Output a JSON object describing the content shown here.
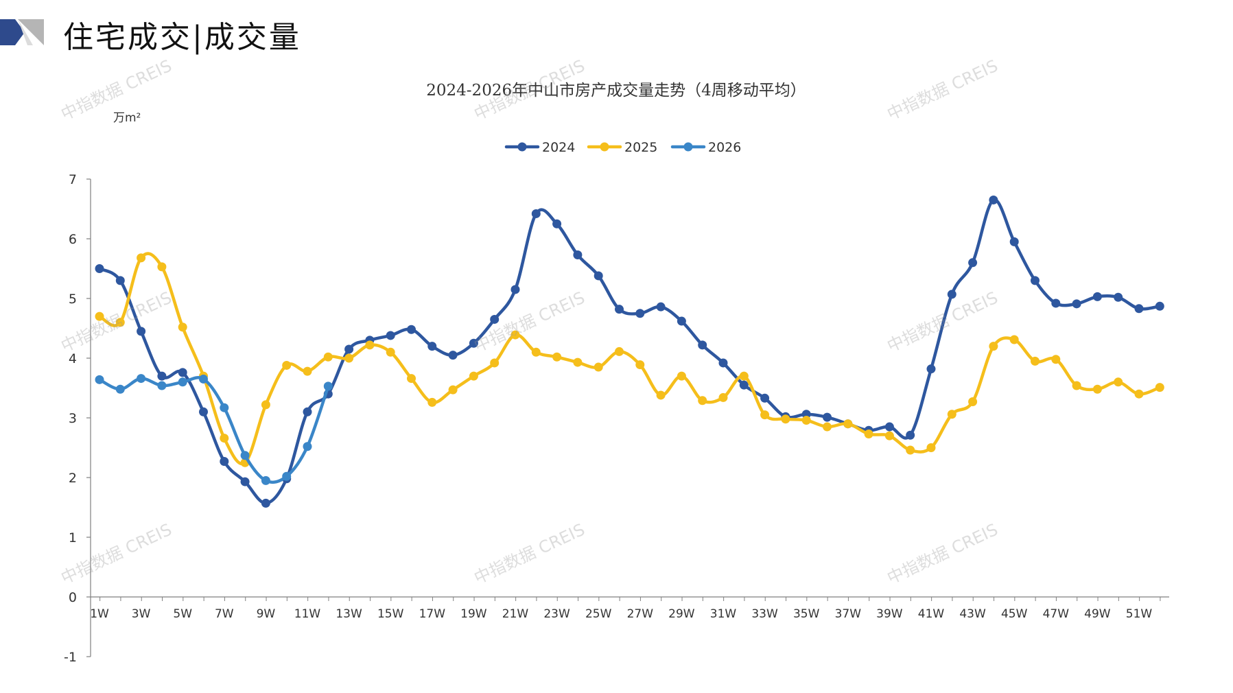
{
  "header": {
    "title": "住宅成交|成交量"
  },
  "watermark": "中指数据 CREIS",
  "colors": {
    "s2024": "#2E579F",
    "s2025": "#F5BE1B",
    "s2026": "#3A86C8",
    "axis": "#7F7F7F",
    "text": "#333333",
    "logo_dark": "#2E4A8C",
    "logo_grey": "#9E9E9E"
  },
  "chart_data": {
    "type": "line",
    "title": "2024-2026年中山市房产成交量走势（4周移动平均）",
    "ylabel": "万m²",
    "xlabel": "",
    "ylim": [
      -1,
      7
    ],
    "yticks": [
      -1,
      0,
      1,
      2,
      3,
      4,
      5,
      6,
      7
    ],
    "x_tick_labels": [
      "1W",
      "3W",
      "5W",
      "7W",
      "9W",
      "11W",
      "13W",
      "15W",
      "17W",
      "19W",
      "21W",
      "23W",
      "25W",
      "27W",
      "29W",
      "31W",
      "33W",
      "35W",
      "37W",
      "39W",
      "41W",
      "43W",
      "45W",
      "47W",
      "49W",
      "51W"
    ],
    "legend_position": "top-center",
    "series": [
      {
        "name": "2024",
        "values": [
          5.5,
          5.3,
          4.45,
          3.7,
          3.76,
          3.1,
          2.27,
          1.93,
          1.57,
          1.98,
          3.1,
          3.4,
          4.15,
          4.3,
          4.38,
          4.48,
          4.2,
          4.05,
          4.25,
          4.65,
          5.15,
          6.42,
          6.25,
          5.73,
          5.38,
          4.82,
          4.75,
          4.86,
          4.62,
          4.22,
          3.92,
          3.55,
          3.33,
          3.02,
          3.06,
          3.01,
          2.9,
          2.79,
          2.85,
          2.71,
          3.82,
          5.07,
          5.6,
          6.65,
          5.95,
          5.3,
          4.92,
          4.91,
          5.03,
          5.02,
          4.83,
          4.87
        ]
      },
      {
        "name": "2025",
        "values": [
          4.7,
          4.6,
          5.68,
          5.53,
          4.52,
          3.7,
          2.66,
          2.25,
          3.22,
          3.88,
          3.78,
          4.02,
          4.0,
          4.22,
          4.1,
          3.66,
          3.26,
          3.47,
          3.7,
          3.92,
          4.39,
          4.1,
          4.02,
          3.93,
          3.85,
          4.11,
          3.89,
          3.38,
          3.7,
          3.29,
          3.34,
          3.7,
          3.05,
          2.98,
          2.96,
          2.85,
          2.9,
          2.73,
          2.7,
          2.46,
          2.5,
          3.06,
          3.27,
          4.2,
          4.31,
          3.95,
          3.98,
          3.54,
          3.48,
          3.6,
          3.4,
          3.51
        ]
      },
      {
        "name": "2026",
        "values": [
          3.64,
          3.48,
          3.66,
          3.54,
          3.6,
          3.65,
          3.17,
          2.37,
          1.95,
          2.02,
          2.52,
          3.53
        ]
      }
    ]
  }
}
